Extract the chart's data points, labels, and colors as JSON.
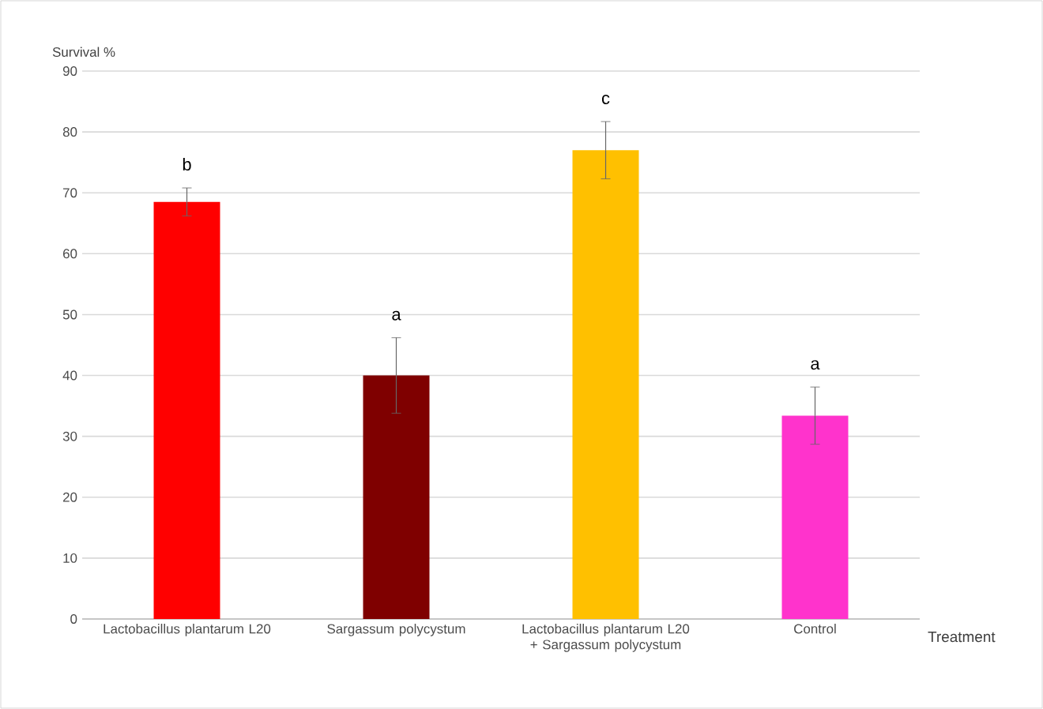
{
  "chart_data": {
    "type": "bar",
    "xlabel": "Treatment",
    "ylabel": "Survival %",
    "categories": [
      "Lactobacillus plantarum L20",
      "Sargassum polycystum",
      "Lactobacillus plantarum L20 + Sargassum polycystum",
      "Control"
    ],
    "values": [
      68.5,
      40,
      77,
      33.4
    ],
    "errors": [
      2.3,
      6.2,
      4.7,
      4.7
    ],
    "colors": [
      "#ff0000",
      "#7f0000",
      "#ffc000",
      "#ff33cc"
    ],
    "ylim": [
      0,
      90
    ],
    "yticks": [
      0,
      10,
      20,
      30,
      40,
      50,
      60,
      70,
      80,
      90
    ],
    "grid": "y",
    "annotations": [
      "b",
      "a",
      "c",
      "a"
    ]
  }
}
